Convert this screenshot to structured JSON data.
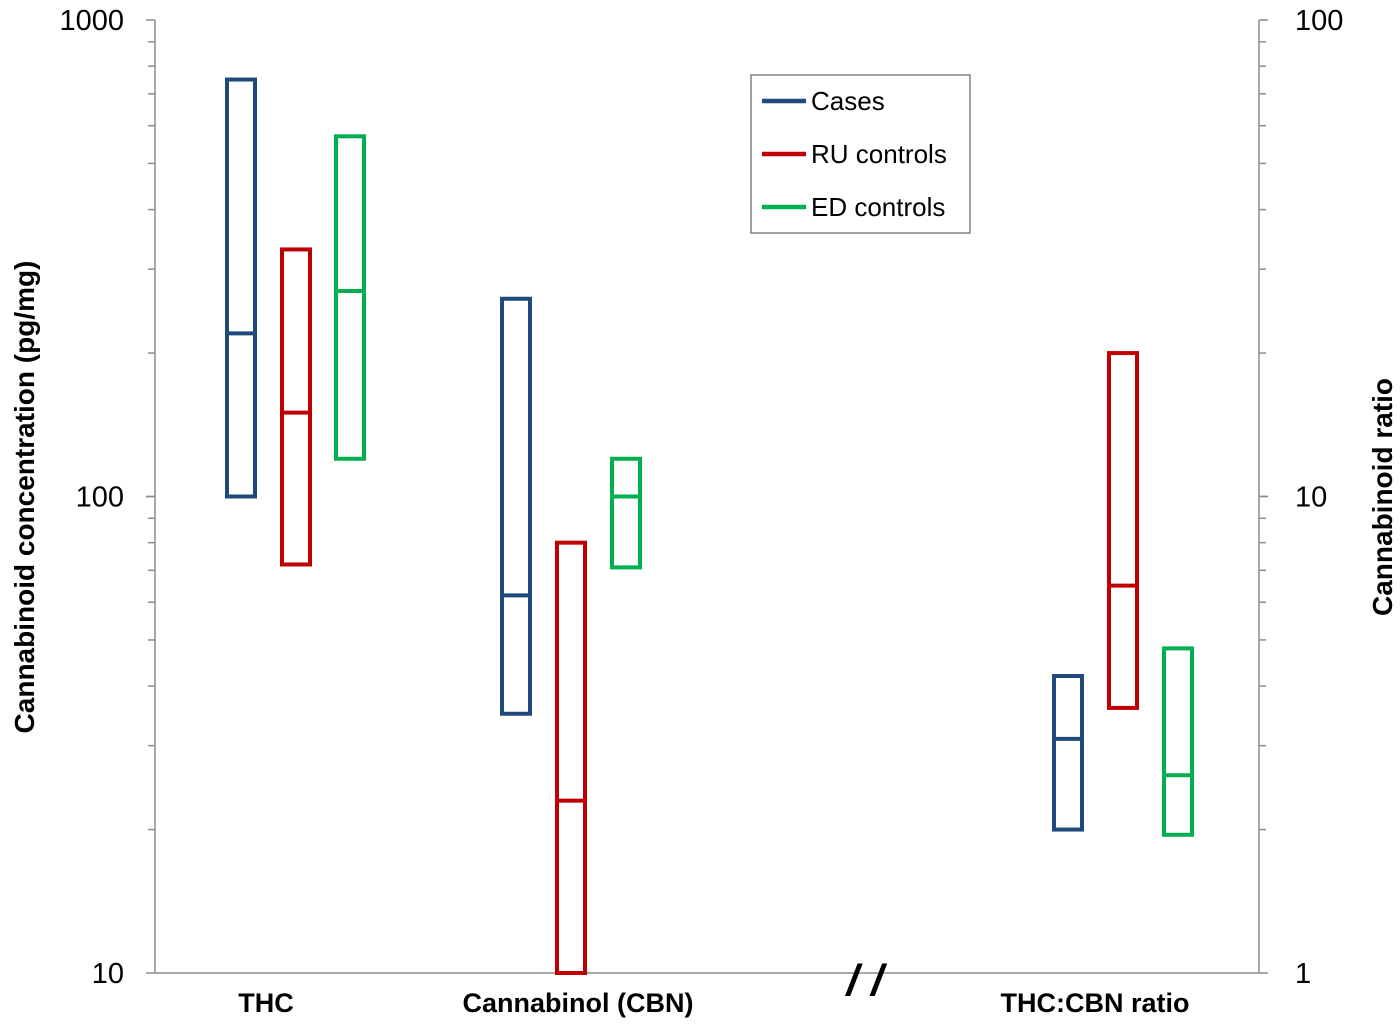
{
  "chart_data": {
    "type": "box",
    "categories": [
      "THC",
      "Cannabinol (CBN)",
      "THC:CBN ratio"
    ],
    "left_axis": {
      "label": "Cannabinoid concentration (pg/mg)",
      "scale": "log",
      "range": [
        10,
        1000
      ],
      "tick_labels": [
        "1000",
        "100",
        "10"
      ]
    },
    "right_axis": {
      "label": "Cannabinoid ratio",
      "scale": "log",
      "range": [
        1,
        100
      ],
      "tick_labels": [
        "100",
        "10",
        "1"
      ]
    },
    "axis_break_label": "/ /",
    "legend_position": "top-right",
    "series": [
      {
        "name": "Cases",
        "color": "#1f497d",
        "boxes": [
          {
            "category": "THC",
            "axis": "left",
            "low": 100,
            "median": 220,
            "high": 750
          },
          {
            "category": "Cannabinol (CBN)",
            "axis": "left",
            "low": 35,
            "median": 62,
            "high": 260
          },
          {
            "category": "THC:CBN ratio",
            "axis": "right",
            "low": 2.0,
            "median": 3.1,
            "high": 4.2
          }
        ]
      },
      {
        "name": "RU controls",
        "color": "#c00000",
        "boxes": [
          {
            "category": "THC",
            "axis": "left",
            "low": 72,
            "median": 150,
            "high": 330
          },
          {
            "category": "Cannabinol (CBN)",
            "axis": "left",
            "low": 10,
            "median": 23,
            "high": 80
          },
          {
            "category": "THC:CBN ratio",
            "axis": "right",
            "low": 3.6,
            "median": 6.5,
            "high": 20
          }
        ]
      },
      {
        "name": "ED controls",
        "color": "#00b050",
        "boxes": [
          {
            "category": "THC",
            "axis": "left",
            "low": 120,
            "median": 270,
            "high": 570
          },
          {
            "category": "Cannabinol (CBN)",
            "axis": "left",
            "low": 71,
            "median": 100,
            "high": 120
          },
          {
            "category": "THC:CBN ratio",
            "axis": "right",
            "low": 1.95,
            "median": 2.6,
            "high": 4.8
          }
        ]
      }
    ]
  }
}
